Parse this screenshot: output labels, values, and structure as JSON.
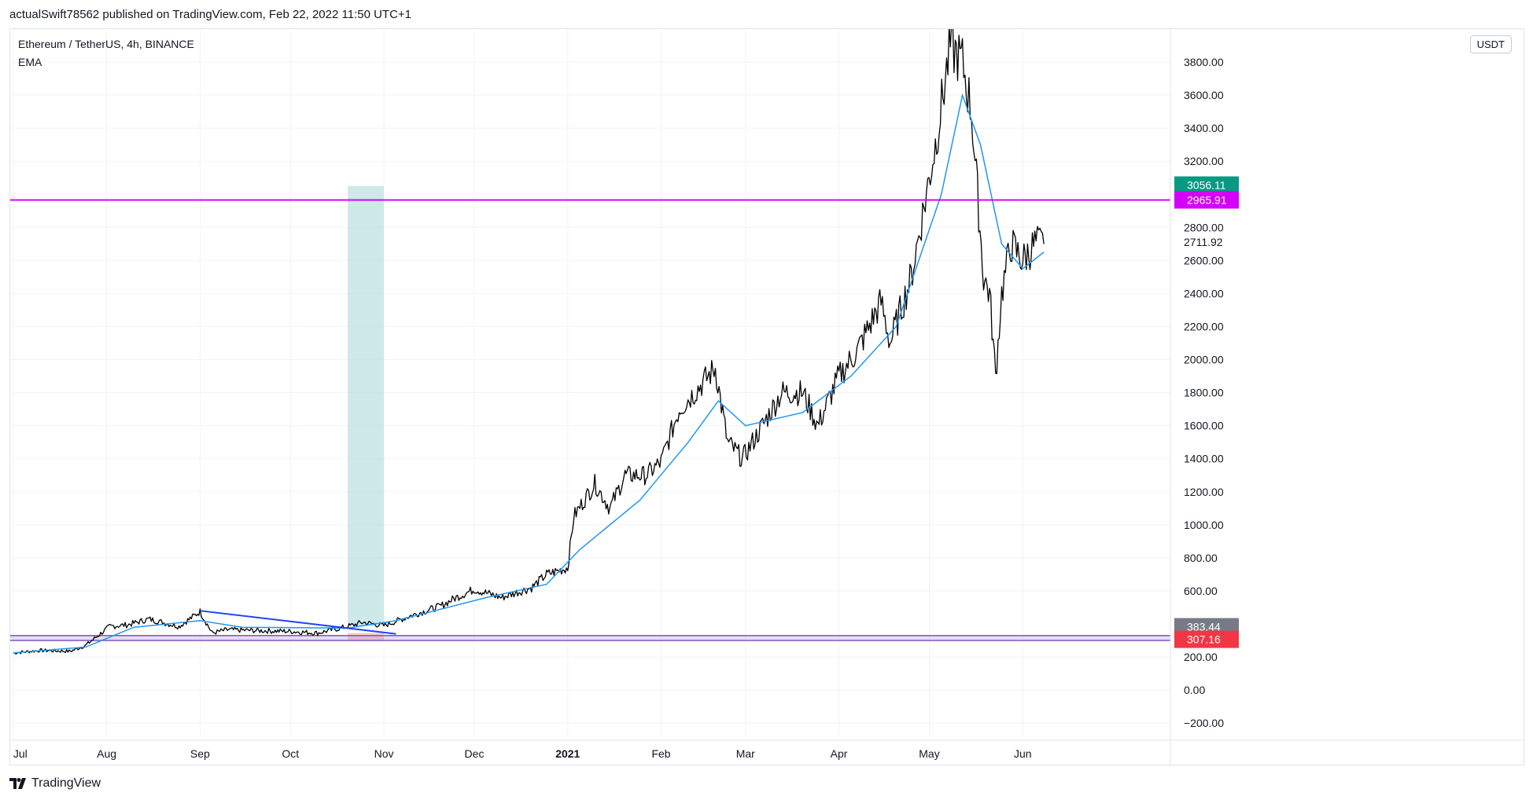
{
  "header": {
    "published_line": "actualSwift78562 published on TradingView.com, Feb 22, 2022 11:50 UTC+1"
  },
  "legend": {
    "symbol_line": "Ethereum / TetherUS, 4h, BINANCE",
    "indicator": "EMA"
  },
  "currency_button": "USDT",
  "footer": {
    "brand": "TradingView",
    "logo_icon": "tradingview-logo-icon"
  },
  "colors": {
    "price": "#000000",
    "ema": "#2196f3",
    "resistance_line": "#d500f9",
    "trend_line": "#1e40ff",
    "zone_green": "#b2dfdb",
    "zone_red": "#f7a6a6",
    "badge_teal": "#089981",
    "badge_magenta": "#d500f9",
    "badge_gray": "#787b86",
    "badge_red": "#f23645",
    "grid": "#f0f3fa"
  },
  "chart_data": {
    "type": "candlestick",
    "title": "Ethereum / TetherUS, 4h, BINANCE",
    "x_ticks": [
      "Jul",
      "Aug",
      "Sep",
      "Oct",
      "Nov",
      "Dec",
      "2021",
      "Feb",
      "Mar",
      "Apr",
      "May",
      "Jun"
    ],
    "y_ticks": [
      "3800.00",
      "3600.00",
      "3400.00",
      "3200.00",
      "2800.00",
      "2600.00",
      "2400.00",
      "2200.00",
      "2000.00",
      "1800.00",
      "1600.00",
      "1400.00",
      "1200.00",
      "1000.00",
      "800.00",
      "600.00",
      "200.00",
      "0.00",
      "−200.00"
    ],
    "y_tick_values": [
      3800,
      3600,
      3400,
      3200,
      2800,
      2600,
      2400,
      2200,
      2000,
      1800,
      1600,
      1400,
      1200,
      1000,
      800,
      600,
      200,
      0,
      -200
    ],
    "ylim": [
      -280,
      4000
    ],
    "grid": true,
    "price_series": {
      "name": "Ethereum / TetherUS",
      "x": [
        "2020-07-01",
        "2020-07-10",
        "2020-07-20",
        "2020-07-25",
        "2020-08-02",
        "2020-08-08",
        "2020-08-15",
        "2020-08-25",
        "2020-09-01",
        "2020-09-05",
        "2020-09-10",
        "2020-09-20",
        "2020-10-01",
        "2020-10-10",
        "2020-10-20",
        "2020-10-25",
        "2020-11-01",
        "2020-11-10",
        "2020-11-20",
        "2020-11-25",
        "2020-12-01",
        "2020-12-10",
        "2020-12-20",
        "2020-12-25",
        "2021-01-01",
        "2021-01-03",
        "2021-01-10",
        "2021-01-15",
        "2021-01-20",
        "2021-01-27",
        "2021-02-01",
        "2021-02-07",
        "2021-02-12",
        "2021-02-19",
        "2021-02-23",
        "2021-02-28",
        "2021-03-05",
        "2021-03-13",
        "2021-03-20",
        "2021-03-25",
        "2021-04-01",
        "2021-04-07",
        "2021-04-15",
        "2021-04-18",
        "2021-04-25",
        "2021-05-03",
        "2021-05-08",
        "2021-05-12",
        "2021-05-15",
        "2021-05-19",
        "2021-05-21",
        "2021-05-23",
        "2021-05-25",
        "2021-05-28",
        "2021-06-01",
        "2021-06-05",
        "2021-06-08"
      ],
      "values": [
        225,
        240,
        235,
        270,
        385,
        395,
        430,
        385,
        475,
        345,
        365,
        360,
        355,
        345,
        385,
        410,
        390,
        450,
        510,
        560,
        610,
        560,
        620,
        700,
        740,
        1050,
        1250,
        1100,
        1300,
        1300,
        1380,
        1700,
        1800,
        1950,
        1500,
        1400,
        1550,
        1800,
        1800,
        1600,
        1900,
        2050,
        2350,
        2100,
        2500,
        3300,
        3900,
        3800,
        3500,
        2500,
        2400,
        1900,
        2400,
        2700,
        2600,
        2700,
        2700
      ]
    },
    "ema_series": {
      "name": "EMA",
      "x": [
        "2020-07-01",
        "2020-07-25",
        "2020-08-10",
        "2020-09-01",
        "2020-09-15",
        "2020-10-20",
        "2020-11-05",
        "2020-12-05",
        "2020-12-25",
        "2021-01-05",
        "2021-01-25",
        "2021-02-10",
        "2021-02-20",
        "2021-03-01",
        "2021-03-20",
        "2021-04-05",
        "2021-04-20",
        "2021-05-05",
        "2021-05-12",
        "2021-05-18",
        "2021-05-25",
        "2021-06-01",
        "2021-06-08"
      ],
      "values": [
        225,
        260,
        380,
        420,
        380,
        375,
        420,
        560,
        640,
        850,
        1150,
        1500,
        1750,
        1600,
        1680,
        1900,
        2200,
        3000,
        3600,
        3300,
        2700,
        2550,
        2650
      ]
    },
    "levels": [
      {
        "label": "3056.11",
        "value": 3056.11,
        "color": "#089981"
      },
      {
        "label": "2965.91",
        "value": 2965.91,
        "color": "#d500f9"
      },
      {
        "label": "2711.92",
        "value": 2711.92,
        "color": "none"
      },
      {
        "label": "383.44",
        "value": 383.44,
        "color": "#787b86"
      },
      {
        "label": "307.16",
        "value": 307.16,
        "color": "#f23645"
      }
    ],
    "horizontal_line": {
      "value": 2965.91
    },
    "support_band": [
      300,
      330
    ],
    "trend_line": {
      "from": [
        "2020-09-01",
        480
      ],
      "to": [
        "2020-11-05",
        340
      ]
    },
    "highlight_zone": {
      "x_from": "2020-10-20",
      "x_to": "2020-11-01",
      "y_from": 390,
      "y_to": 3050
    },
    "small_zone": {
      "x_from": "2020-10-20",
      "x_to": "2020-11-01",
      "y_from": 300,
      "y_to": 345
    }
  }
}
